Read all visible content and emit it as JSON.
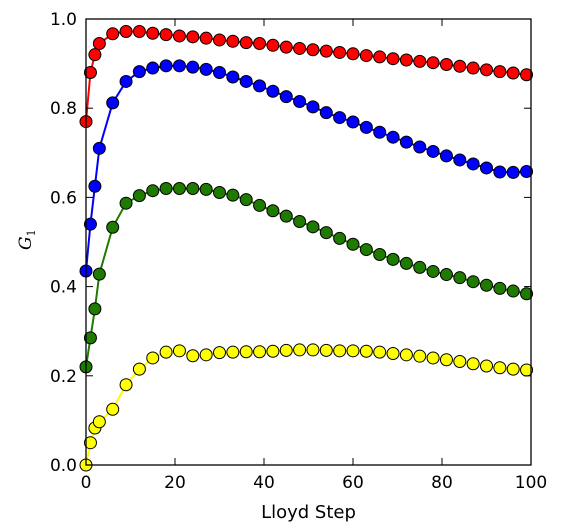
{
  "chart_data": {
    "type": "line",
    "title": "",
    "xlabel": "Lloyd Step",
    "ylabel": {
      "main": "G",
      "sub": "1"
    },
    "xlim": [
      0,
      100
    ],
    "ylim": [
      0.0,
      1.0
    ],
    "xticks": [
      0,
      20,
      40,
      60,
      80,
      100
    ],
    "yticks": [
      0.0,
      0.2,
      0.4,
      0.6,
      0.8,
      1.0
    ],
    "xtick_labels": [
      "0",
      "20",
      "40",
      "60",
      "80",
      "100"
    ],
    "ytick_labels": [
      "0.0",
      "0.2",
      "0.4",
      "0.6",
      "0.8",
      "1.0"
    ],
    "grid": false,
    "legend": "none",
    "x": [
      0,
      1,
      2,
      3,
      6,
      9,
      12,
      15,
      18,
      21,
      24,
      27,
      30,
      33,
      36,
      39,
      42,
      45,
      48,
      51,
      54,
      57,
      60,
      63,
      66,
      69,
      72,
      75,
      78,
      81,
      84,
      87,
      90,
      93,
      96,
      99
    ],
    "series": [
      {
        "color": "#ff0000",
        "values": [
          0.77,
          0.88,
          0.92,
          0.945,
          0.967,
          0.972,
          0.972,
          0.968,
          0.965,
          0.962,
          0.96,
          0.957,
          0.953,
          0.95,
          0.947,
          0.945,
          0.941,
          0.937,
          0.934,
          0.931,
          0.928,
          0.925,
          0.922,
          0.918,
          0.915,
          0.911,
          0.908,
          0.905,
          0.902,
          0.898,
          0.894,
          0.89,
          0.886,
          0.882,
          0.879,
          0.875
        ]
      },
      {
        "color": "#0000ff",
        "values": [
          0.435,
          0.54,
          0.625,
          0.71,
          0.812,
          0.86,
          0.882,
          0.89,
          0.895,
          0.895,
          0.892,
          0.887,
          0.88,
          0.87,
          0.86,
          0.85,
          0.838,
          0.826,
          0.815,
          0.803,
          0.79,
          0.779,
          0.769,
          0.757,
          0.746,
          0.735,
          0.724,
          0.713,
          0.703,
          0.693,
          0.684,
          0.675,
          0.666,
          0.657,
          0.656,
          0.658
        ]
      },
      {
        "color": "#1f7a00",
        "values": [
          0.22,
          0.285,
          0.35,
          0.428,
          0.533,
          0.587,
          0.604,
          0.615,
          0.62,
          0.62,
          0.62,
          0.618,
          0.611,
          0.605,
          0.595,
          0.582,
          0.57,
          0.558,
          0.546,
          0.534,
          0.521,
          0.508,
          0.495,
          0.483,
          0.472,
          0.461,
          0.452,
          0.443,
          0.434,
          0.427,
          0.42,
          0.411,
          0.403,
          0.396,
          0.39,
          0.384
        ]
      },
      {
        "color": "#ffff00",
        "values": [
          0.0,
          0.05,
          0.083,
          0.097,
          0.125,
          0.18,
          0.215,
          0.24,
          0.253,
          0.256,
          0.245,
          0.247,
          0.252,
          0.253,
          0.254,
          0.254,
          0.255,
          0.257,
          0.258,
          0.258,
          0.257,
          0.256,
          0.256,
          0.255,
          0.253,
          0.25,
          0.247,
          0.244,
          0.24,
          0.236,
          0.232,
          0.227,
          0.222,
          0.218,
          0.215,
          0.213
        ]
      }
    ]
  }
}
